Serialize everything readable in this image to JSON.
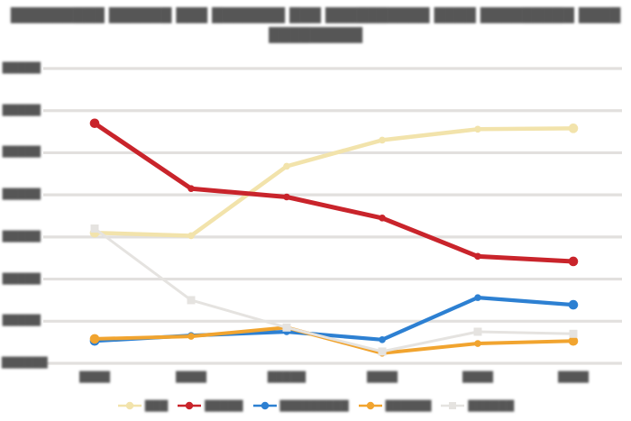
{
  "title": {
    "line1": "█████████ ██████ ███ ███████ ███ ██████████ ████ █████████ ████",
    "line2": "█████████"
  },
  "chart_data": {
    "type": "line",
    "title": "█████████ ██████ ███ ███████ ███ ██████████ ████ █████████ ████ █████████",
    "xlabel": "",
    "ylabel": "",
    "grid": true,
    "legend_position": "bottom",
    "ylim": [
      0,
      70
    ],
    "ytick_step": 10,
    "yticklabels": [
      "█████",
      "█████",
      "█████",
      "█████",
      "█████",
      "█████",
      "█████",
      "██████"
    ],
    "categories": [
      "████",
      "████",
      "█████",
      "████",
      "████",
      "████"
    ],
    "series": [
      {
        "key": "cream",
        "label": "███",
        "color": "#f2e3ab",
        "marker": "circle",
        "values": [
          31.0,
          30.3,
          46.8,
          53.0,
          55.6,
          55.8
        ]
      },
      {
        "key": "red",
        "label": "█████",
        "color": "#c9242b",
        "marker": "circle",
        "values": [
          57.0,
          41.5,
          39.5,
          34.5,
          25.4,
          24.2
        ]
      },
      {
        "key": "blue",
        "label": "█████████",
        "color": "#2d80d2",
        "marker": "circle",
        "values": [
          5.3,
          6.6,
          7.5,
          5.6,
          15.6,
          13.9
        ]
      },
      {
        "key": "orange",
        "label": "██████",
        "color": "#f1a42f",
        "marker": "circle",
        "values": [
          5.8,
          6.4,
          8.5,
          2.4,
          4.7,
          5.3
        ]
      },
      {
        "key": "gray",
        "label": "██████",
        "color": "#e5e3e0",
        "marker": "square",
        "values": [
          32.0,
          15.0,
          8.5,
          2.8,
          7.5,
          7.0
        ]
      }
    ],
    "colors": {
      "gridline": "#e2e0de",
      "title_text": "#565656",
      "axis_text": "#5f5f5f"
    }
  }
}
